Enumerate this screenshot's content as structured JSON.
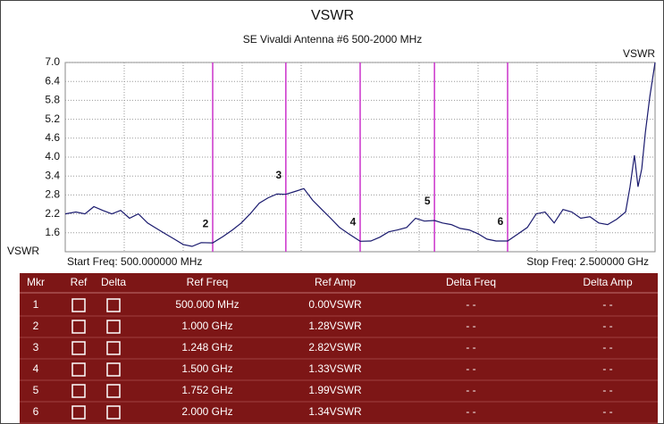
{
  "chart_data": {
    "type": "line",
    "title": "VSWR",
    "subtitle": "SE Vivaldi Antenna #6 500-2000 MHz",
    "y_label_top": "VSWR",
    "y_label_bottom": "VSWR",
    "start_label": "Start Freq: 500.000000 MHz",
    "stop_label": "Stop Freq: 2.500000 GHz",
    "xlim": [
      500,
      2500
    ],
    "ylim": [
      1,
      7
    ],
    "yticks": [
      1.6,
      2.2,
      2.8,
      3.4,
      {
        "value": 4,
        "label": "4.0"
      },
      4.6,
      5.2,
      5.8,
      6.4,
      {
        "value": 7,
        "label": "7.0"
      }
    ],
    "grid": true,
    "series": [
      {
        "name": "VSWR",
        "color": "#1a1a6e",
        "x": [
          500,
          536,
          567,
          597,
          627,
          658,
          688,
          718,
          748,
          779,
          809,
          839,
          870,
          900,
          930,
          961,
          1000,
          1036,
          1067,
          1097,
          1127,
          1158,
          1188,
          1218,
          1248,
          1279,
          1309,
          1339,
          1370,
          1400,
          1430,
          1461,
          1500,
          1536,
          1567,
          1597,
          1627,
          1658,
          1688,
          1718,
          1752,
          1779,
          1809,
          1839,
          1870,
          1900,
          1930,
          1961,
          2000,
          2036,
          2067,
          2097,
          2127,
          2158,
          2188,
          2218,
          2248,
          2279,
          2309,
          2339,
          2370,
          2400,
          2415,
          2430,
          2442,
          2455,
          2467,
          2482,
          2500
        ],
        "values": [
          2.2,
          2.26,
          2.2,
          2.43,
          2.31,
          2.2,
          2.31,
          2.06,
          2.2,
          1.91,
          1.74,
          1.57,
          1.4,
          1.23,
          1.17,
          1.29,
          1.28,
          1.49,
          1.69,
          1.91,
          2.2,
          2.54,
          2.71,
          2.83,
          2.82,
          2.91,
          3.0,
          2.63,
          2.34,
          2.06,
          1.77,
          1.57,
          1.33,
          1.34,
          1.46,
          1.63,
          1.69,
          1.77,
          2.06,
          1.97,
          1.99,
          1.91,
          1.86,
          1.74,
          1.69,
          1.57,
          1.4,
          1.34,
          1.34,
          1.57,
          1.77,
          2.2,
          2.26,
          1.91,
          2.34,
          2.26,
          2.06,
          2.11,
          1.91,
          1.86,
          2.03,
          2.26,
          3.06,
          4.06,
          3.06,
          3.63,
          4.77,
          5.91,
          7.0
        ]
      }
    ],
    "markers": {
      "color": "#cc33cc",
      "labels": [
        "2",
        "3",
        "4",
        "5",
        "6"
      ],
      "x": [
        1000,
        1248,
        1500,
        1752,
        2000
      ],
      "values": [
        1.28,
        2.82,
        1.33,
        1.99,
        1.34
      ]
    }
  },
  "marker_table": {
    "columns": [
      "Mkr",
      "Ref",
      "Delta",
      "Ref Freq",
      "Ref Amp",
      "Delta Freq",
      "Delta Amp"
    ],
    "rows": [
      [
        "1",
        "500.000 MHz",
        "0.00VSWR",
        "- -",
        "- -"
      ],
      [
        "2",
        "1.000 GHz",
        "1.28VSWR",
        "- -",
        "- -"
      ],
      [
        "3",
        "1.248 GHz",
        "2.82VSWR",
        "- -",
        "- -"
      ],
      [
        "4",
        "1.500 GHz",
        "1.33VSWR",
        "- -",
        "- -"
      ],
      [
        "5",
        "1.752 GHz",
        "1.99VSWR",
        "- -",
        "- -"
      ],
      [
        "6",
        "2.000 GHz",
        "1.34VSWR",
        "- -",
        "- -"
      ]
    ]
  }
}
